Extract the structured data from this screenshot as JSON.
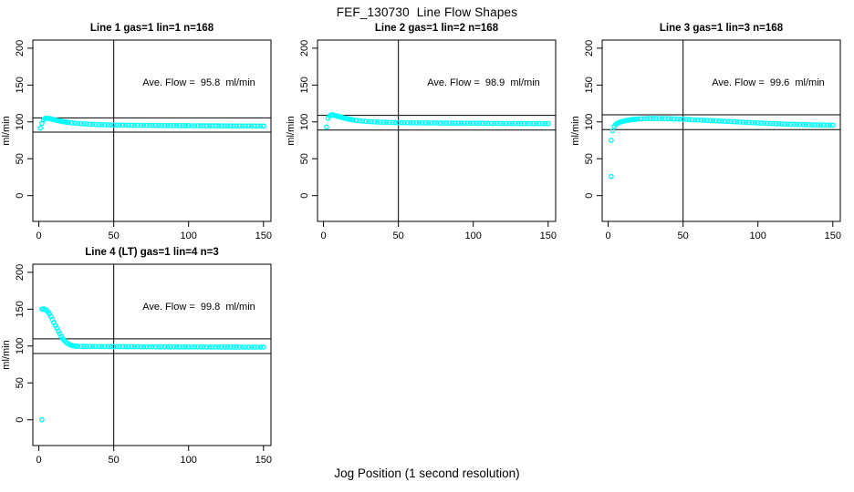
{
  "page": {
    "title": "FEF_130730  Line Flow Shapes",
    "xlabel": "Jog Position (1 second resolution)"
  },
  "colors": {
    "point": "#00ffff",
    "axis": "#000000",
    "background": "#ffffff"
  },
  "axes": {
    "x_ticks": [
      0,
      50,
      100,
      150
    ],
    "y_ticks": [
      0,
      50,
      100,
      150,
      200
    ],
    "x_range": [
      -4,
      155
    ],
    "y_range": [
      -35,
      211
    ],
    "ylabel": "ml/min",
    "grid": false
  },
  "chart_data": [
    {
      "type": "scatter",
      "title": "Line 1 gas=1 lin=1 n=168",
      "annotation": "Ave. Flow =  95.8  ml/min",
      "ave_flow": 95.8,
      "n": 168,
      "hlines": [
        86.2,
        105.4
      ],
      "vline": 50,
      "points": [
        [
          1,
          91.5
        ],
        [
          2,
          98
        ],
        [
          3,
          102.5
        ],
        [
          4,
          104.5
        ],
        [
          5,
          105
        ],
        [
          6,
          104.8
        ],
        [
          7,
          104.4
        ],
        [
          8,
          104
        ],
        [
          9,
          103.5
        ],
        [
          10,
          103
        ],
        [
          11,
          102.5
        ],
        [
          12,
          102
        ],
        [
          13,
          101.6
        ],
        [
          14,
          101.2
        ],
        [
          15,
          100.8
        ],
        [
          16,
          100.4
        ],
        [
          17,
          100.1
        ],
        [
          18,
          99.8
        ],
        [
          19,
          99.5
        ],
        [
          20,
          99.2
        ],
        [
          22,
          98.7
        ],
        [
          24,
          98.3
        ],
        [
          26,
          97.9
        ],
        [
          28,
          97.6
        ],
        [
          30,
          97.3
        ],
        [
          32,
          97.1
        ],
        [
          34,
          96.9
        ],
        [
          36,
          96.7
        ],
        [
          38,
          96.5
        ],
        [
          40,
          96.4
        ],
        [
          42,
          96.2
        ],
        [
          44,
          96.1
        ],
        [
          46,
          96
        ],
        [
          48,
          95.9
        ],
        [
          50,
          95.8
        ],
        [
          52,
          95.7
        ],
        [
          54,
          95.7
        ],
        [
          56,
          95.6
        ],
        [
          58,
          95.6
        ],
        [
          60,
          95.5
        ],
        [
          62,
          95.5
        ],
        [
          64,
          95.4
        ],
        [
          66,
          95.4
        ],
        [
          68,
          95.3
        ],
        [
          70,
          95.3
        ],
        [
          72,
          95.3
        ],
        [
          74,
          95.2
        ],
        [
          76,
          95.2
        ],
        [
          78,
          95.2
        ],
        [
          80,
          95.1
        ],
        [
          82,
          95.1
        ],
        [
          84,
          95.1
        ],
        [
          86,
          95
        ],
        [
          88,
          95
        ],
        [
          90,
          95
        ],
        [
          92,
          95
        ],
        [
          94,
          94.9
        ],
        [
          96,
          94.9
        ],
        [
          98,
          94.9
        ],
        [
          100,
          94.9
        ],
        [
          102,
          94.8
        ],
        [
          104,
          94.8
        ],
        [
          106,
          94.8
        ],
        [
          108,
          94.8
        ],
        [
          110,
          94.7
        ],
        [
          112,
          94.7
        ],
        [
          114,
          94.7
        ],
        [
          116,
          94.7
        ],
        [
          118,
          94.7
        ],
        [
          120,
          94.6
        ],
        [
          122,
          94.6
        ],
        [
          124,
          94.6
        ],
        [
          126,
          94.6
        ],
        [
          128,
          94.6
        ],
        [
          130,
          94.5
        ],
        [
          132,
          94.5
        ],
        [
          134,
          94.5
        ],
        [
          136,
          94.5
        ],
        [
          138,
          94.5
        ],
        [
          140,
          94.5
        ],
        [
          142,
          94.4
        ],
        [
          144,
          94.4
        ],
        [
          146,
          94.4
        ],
        [
          148,
          94.4
        ],
        [
          150,
          94.4
        ]
      ]
    },
    {
      "type": "scatter",
      "title": "Line 2 gas=1 lin=2 n=168",
      "annotation": "Ave. Flow =  98.9  ml/min",
      "ave_flow": 98.9,
      "n": 168,
      "hlines": [
        89.0,
        108.8
      ],
      "vline": 50,
      "points": [
        [
          2,
          93
        ],
        [
          3,
          105
        ],
        [
          4,
          108
        ],
        [
          5,
          109.5
        ],
        [
          6,
          109.5
        ],
        [
          7,
          109
        ],
        [
          8,
          108.5
        ],
        [
          9,
          108
        ],
        [
          10,
          107.4
        ],
        [
          11,
          106.8
        ],
        [
          12,
          106.2
        ],
        [
          13,
          105.6
        ],
        [
          14,
          105.1
        ],
        [
          15,
          104.6
        ],
        [
          16,
          104.1
        ],
        [
          17,
          103.7
        ],
        [
          18,
          103.3
        ],
        [
          19,
          102.9
        ],
        [
          20,
          102.6
        ],
        [
          22,
          102
        ],
        [
          24,
          101.5
        ],
        [
          26,
          101.1
        ],
        [
          28,
          100.7
        ],
        [
          30,
          100.4
        ],
        [
          32,
          100.2
        ],
        [
          34,
          100
        ],
        [
          36,
          99.8
        ],
        [
          38,
          99.6
        ],
        [
          40,
          99.5
        ],
        [
          42,
          99.4
        ],
        [
          44,
          99.3
        ],
        [
          46,
          99.2
        ],
        [
          48,
          99.1
        ],
        [
          50,
          99
        ],
        [
          52,
          99
        ],
        [
          54,
          98.9
        ],
        [
          56,
          98.9
        ],
        [
          58,
          98.8
        ],
        [
          60,
          98.8
        ],
        [
          62,
          98.7
        ],
        [
          64,
          98.7
        ],
        [
          66,
          98.6
        ],
        [
          68,
          98.6
        ],
        [
          70,
          98.6
        ],
        [
          72,
          98.5
        ],
        [
          74,
          98.5
        ],
        [
          76,
          98.5
        ],
        [
          78,
          98.4
        ],
        [
          80,
          98.4
        ],
        [
          82,
          98.4
        ],
        [
          84,
          98.3
        ],
        [
          86,
          98.3
        ],
        [
          88,
          98.3
        ],
        [
          90,
          98.3
        ],
        [
          92,
          98.2
        ],
        [
          94,
          98.2
        ],
        [
          96,
          98.2
        ],
        [
          98,
          98.2
        ],
        [
          100,
          98.1
        ],
        [
          102,
          98.1
        ],
        [
          104,
          98.1
        ],
        [
          106,
          98.1
        ],
        [
          108,
          98
        ],
        [
          110,
          98
        ],
        [
          112,
          98
        ],
        [
          114,
          98
        ],
        [
          116,
          98
        ],
        [
          118,
          97.9
        ],
        [
          120,
          97.9
        ],
        [
          122,
          97.9
        ],
        [
          124,
          97.9
        ],
        [
          126,
          97.9
        ],
        [
          128,
          97.9
        ],
        [
          130,
          97.8
        ],
        [
          132,
          97.8
        ],
        [
          134,
          97.8
        ],
        [
          136,
          97.8
        ],
        [
          138,
          97.8
        ],
        [
          140,
          97.8
        ],
        [
          142,
          97.7
        ],
        [
          144,
          97.7
        ],
        [
          146,
          97.7
        ],
        [
          148,
          97.7
        ],
        [
          150,
          97.7
        ]
      ]
    },
    {
      "type": "scatter",
      "title": "Line 3 gas=1 lin=3 n=168",
      "annotation": "Ave. Flow =  99.6  ml/min",
      "ave_flow": 99.6,
      "n": 168,
      "hlines": [
        89.6,
        109.6
      ],
      "vline": 50,
      "points": [
        [
          2,
          26
        ],
        [
          2,
          75
        ],
        [
          3,
          88
        ],
        [
          4,
          94
        ],
        [
          5,
          96.5
        ],
        [
          6,
          98
        ],
        [
          7,
          99
        ],
        [
          8,
          99.8
        ],
        [
          9,
          100.4
        ],
        [
          10,
          101
        ],
        [
          11,
          101.5
        ],
        [
          12,
          101.9
        ],
        [
          13,
          102.3
        ],
        [
          14,
          102.6
        ],
        [
          15,
          102.9
        ],
        [
          16,
          103.2
        ],
        [
          17,
          103.4
        ],
        [
          18,
          103.6
        ],
        [
          19,
          103.8
        ],
        [
          20,
          104
        ],
        [
          22,
          104.2
        ],
        [
          24,
          104.4
        ],
        [
          26,
          104.5
        ],
        [
          28,
          104.6
        ],
        [
          30,
          104.6
        ],
        [
          32,
          104.6
        ],
        [
          34,
          104.5
        ],
        [
          36,
          104.5
        ],
        [
          38,
          104.4
        ],
        [
          40,
          104.3
        ],
        [
          42,
          104.2
        ],
        [
          44,
          104.1
        ],
        [
          46,
          103.9
        ],
        [
          48,
          103.8
        ],
        [
          50,
          103.6
        ],
        [
          52,
          103.4
        ],
        [
          54,
          103.2
        ],
        [
          56,
          103
        ],
        [
          58,
          102.8
        ],
        [
          60,
          102.6
        ],
        [
          62,
          102.4
        ],
        [
          64,
          102.2
        ],
        [
          66,
          102
        ],
        [
          68,
          101.8
        ],
        [
          70,
          101.6
        ],
        [
          72,
          101.4
        ],
        [
          74,
          101.2
        ],
        [
          76,
          101
        ],
        [
          78,
          100.8
        ],
        [
          80,
          100.6
        ],
        [
          82,
          100.4
        ],
        [
          84,
          100.2
        ],
        [
          86,
          100
        ],
        [
          88,
          99.8
        ],
        [
          90,
          99.6
        ],
        [
          92,
          99.4
        ],
        [
          94,
          99.2
        ],
        [
          96,
          99
        ],
        [
          98,
          98.8
        ],
        [
          100,
          98.6
        ],
        [
          102,
          98.4
        ],
        [
          104,
          98.2
        ],
        [
          106,
          98
        ],
        [
          108,
          97.9
        ],
        [
          110,
          97.7
        ],
        [
          112,
          97.5
        ],
        [
          114,
          97.4
        ],
        [
          116,
          97.2
        ],
        [
          118,
          97.1
        ],
        [
          120,
          96.9
        ],
        [
          122,
          96.8
        ],
        [
          124,
          96.7
        ],
        [
          126,
          96.6
        ],
        [
          128,
          96.5
        ],
        [
          130,
          96.4
        ],
        [
          132,
          96.3
        ],
        [
          134,
          96.2
        ],
        [
          136,
          96.1
        ],
        [
          138,
          96
        ],
        [
          140,
          95.9
        ],
        [
          142,
          95.8
        ],
        [
          144,
          95.8
        ],
        [
          146,
          95.7
        ],
        [
          148,
          95.6
        ],
        [
          150,
          95.6
        ]
      ]
    },
    {
      "type": "scatter",
      "title": "Line 4 (LT) gas=1 lin=4 n=3",
      "annotation": "Ave. Flow =  99.8  ml/min",
      "ave_flow": 99.8,
      "n": 3,
      "hlines": [
        89.8,
        109.8
      ],
      "vline": 50,
      "points": [
        [
          2,
          0
        ],
        [
          2,
          150
        ],
        [
          3,
          150.5
        ],
        [
          4,
          149.8
        ],
        [
          5,
          148.5
        ],
        [
          6,
          146.5
        ],
        [
          7,
          143.5
        ],
        [
          8,
          140
        ],
        [
          9,
          136
        ],
        [
          10,
          132
        ],
        [
          11,
          128
        ],
        [
          12,
          124
        ],
        [
          13,
          120
        ],
        [
          14,
          116.5
        ],
        [
          15,
          113
        ],
        [
          16,
          110
        ],
        [
          17,
          107.5
        ],
        [
          18,
          105.5
        ],
        [
          19,
          103.8
        ],
        [
          20,
          102.5
        ],
        [
          21,
          101.5
        ],
        [
          22,
          100.8
        ],
        [
          23,
          100.3
        ],
        [
          24,
          100
        ],
        [
          25,
          99.8
        ],
        [
          26,
          99.7
        ],
        [
          28,
          99.6
        ],
        [
          30,
          99.5
        ],
        [
          32,
          99.5
        ],
        [
          34,
          99.4
        ],
        [
          36,
          99.4
        ],
        [
          38,
          99.4
        ],
        [
          40,
          99.3
        ],
        [
          42,
          99.3
        ],
        [
          44,
          99.3
        ],
        [
          46,
          99.3
        ],
        [
          48,
          99.2
        ],
        [
          50,
          99.2
        ],
        [
          52,
          99.2
        ],
        [
          54,
          99.2
        ],
        [
          56,
          99.2
        ],
        [
          58,
          99.1
        ],
        [
          60,
          99.1
        ],
        [
          62,
          99.1
        ],
        [
          64,
          99.1
        ],
        [
          66,
          99.1
        ],
        [
          68,
          99
        ],
        [
          70,
          99
        ],
        [
          72,
          99
        ],
        [
          74,
          99
        ],
        [
          76,
          99
        ],
        [
          78,
          99
        ],
        [
          80,
          98.9
        ],
        [
          82,
          98.9
        ],
        [
          84,
          98.9
        ],
        [
          86,
          98.9
        ],
        [
          88,
          98.9
        ],
        [
          90,
          98.9
        ],
        [
          92,
          98.8
        ],
        [
          94,
          98.8
        ],
        [
          96,
          98.8
        ],
        [
          98,
          98.8
        ],
        [
          100,
          98.8
        ],
        [
          102,
          98.8
        ],
        [
          104,
          98.8
        ],
        [
          106,
          98.7
        ],
        [
          108,
          98.7
        ],
        [
          110,
          98.7
        ],
        [
          112,
          98.7
        ],
        [
          114,
          98.7
        ],
        [
          116,
          98.7
        ],
        [
          118,
          98.7
        ],
        [
          120,
          98.6
        ],
        [
          122,
          98.6
        ],
        [
          124,
          98.6
        ],
        [
          126,
          98.6
        ],
        [
          128,
          98.6
        ],
        [
          130,
          98.6
        ],
        [
          132,
          98.6
        ],
        [
          134,
          98.5
        ],
        [
          136,
          98.5
        ],
        [
          138,
          98.5
        ],
        [
          140,
          98.5
        ],
        [
          142,
          98.5
        ],
        [
          144,
          98.5
        ],
        [
          146,
          98.5
        ],
        [
          148,
          98.5
        ],
        [
          150,
          98.5
        ]
      ]
    }
  ]
}
